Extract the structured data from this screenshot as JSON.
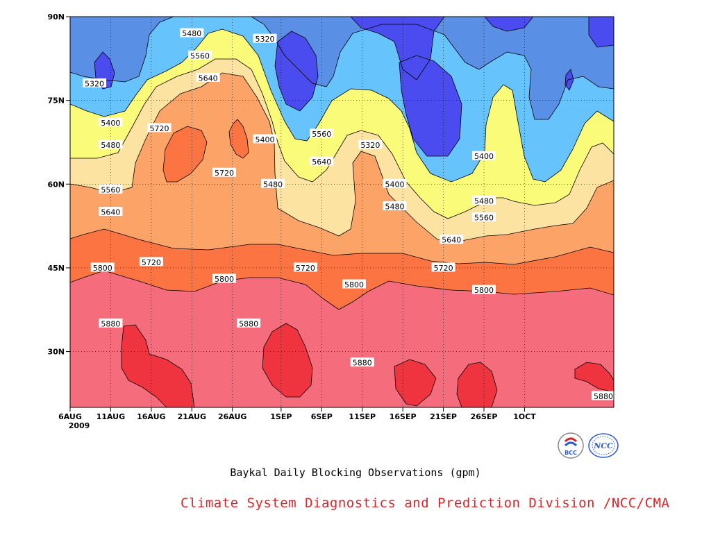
{
  "chart_data": {
    "type": "contour",
    "title": "Baykal Daily Blocking Observations (gpm)",
    "x_ticks": [
      "6AUG",
      "11AUG",
      "16AUG",
      "21AUG",
      "26AUG",
      "1SEP",
      "6SEP",
      "11SEP",
      "16SEP",
      "21SEP",
      "26SEP",
      "1OCT"
    ],
    "x_year": "2009",
    "y_ticks": [
      "90N",
      "75N",
      "60N",
      "45N",
      "30N"
    ],
    "xlim": [
      "6AUG2009",
      "12OCT2009"
    ],
    "ylim": [
      20,
      90
    ],
    "levels": [
      5320,
      5400,
      5480,
      5560,
      5640,
      5720,
      5800,
      5880
    ],
    "level_colors": {
      "below_5320": "#4a4cf0",
      "5320_5400": "#5a8fe6",
      "5400_5480": "#66c3fb",
      "5480_5560": "#fbfb7a",
      "5560_5640": "#fde3a2",
      "5640_5720": "#fca468",
      "5720_5800": "#fb7442",
      "5800_5880": "#f56d7c",
      "above_5880": "#f0343f"
    },
    "contour_labels": [
      {
        "value": "5480",
        "date": "21AUG",
        "lat": 87
      },
      {
        "value": "5320",
        "date": "30AUG",
        "lat": 86
      },
      {
        "value": "5560",
        "date": "22AUG",
        "lat": 83
      },
      {
        "value": "5320",
        "date": "9AUG",
        "lat": 78
      },
      {
        "value": "5640",
        "date": "23AUG",
        "lat": 79
      },
      {
        "value": "5400",
        "date": "11AUG",
        "lat": 71
      },
      {
        "value": "5720",
        "date": "17AUG",
        "lat": 70
      },
      {
        "value": "5400",
        "date": "30AUG",
        "lat": 68
      },
      {
        "value": "5560",
        "date": "6SEP",
        "lat": 69
      },
      {
        "value": "5320",
        "date": "12SEP",
        "lat": 67
      },
      {
        "value": "5480",
        "date": "11AUG",
        "lat": 67
      },
      {
        "value": "5720",
        "date": "25AUG",
        "lat": 62
      },
      {
        "value": "5640",
        "date": "6SEP",
        "lat": 64
      },
      {
        "value": "5400",
        "date": "26SEP",
        "lat": 65
      },
      {
        "value": "5480",
        "date": "31AUG",
        "lat": 60
      },
      {
        "value": "5400",
        "date": "15SEP",
        "lat": 60
      },
      {
        "value": "5560",
        "date": "11AUG",
        "lat": 59
      },
      {
        "value": "5480",
        "date": "15SEP",
        "lat": 56
      },
      {
        "value": "5480",
        "date": "26SEP",
        "lat": 57
      },
      {
        "value": "5640",
        "date": "11AUG",
        "lat": 55
      },
      {
        "value": "5560",
        "date": "26SEP",
        "lat": 54
      },
      {
        "value": "5640",
        "date": "22SEP",
        "lat": 50
      },
      {
        "value": "5720",
        "date": "16AUG",
        "lat": 46
      },
      {
        "value": "5720",
        "date": "4SEP",
        "lat": 45
      },
      {
        "value": "5720",
        "date": "21SEP",
        "lat": 45
      },
      {
        "value": "5800",
        "date": "10AUG",
        "lat": 45
      },
      {
        "value": "5800",
        "date": "25AUG",
        "lat": 43
      },
      {
        "value": "5800",
        "date": "10SEP",
        "lat": 42
      },
      {
        "value": "5800",
        "date": "26SEP",
        "lat": 41
      },
      {
        "value": "5880",
        "date": "11AUG",
        "lat": 35
      },
      {
        "value": "5880",
        "date": "28AUG",
        "lat": 35
      },
      {
        "value": "5880",
        "date": "11SEP",
        "lat": 28
      },
      {
        "value": "5880",
        "date": "12OCT",
        "lat": 22
      }
    ]
  },
  "caption": "Baykal Daily Blocking Observations (gpm)",
  "credit": "Climate System Diagnostics and Prediction Division /NCC/CMA",
  "logos": [
    {
      "icon": "bcc-logo-icon",
      "text": "BCC"
    },
    {
      "icon": "ncc-logo-icon",
      "text": "NCC"
    }
  ]
}
